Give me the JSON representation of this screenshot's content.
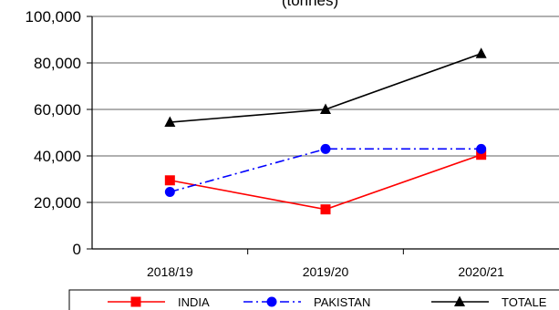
{
  "chart_data": {
    "type": "line",
    "title": "(tonnes)",
    "categories": [
      "2018/19",
      "2019/20",
      "2020/21"
    ],
    "ylim": [
      0,
      100000
    ],
    "yticks": [
      "0",
      "20,000",
      "40,000",
      "60,000",
      "80,000",
      "100,000"
    ],
    "grid": true,
    "legend_position": "bottom",
    "series": [
      {
        "name": "INDIA",
        "values": [
          29500,
          17000,
          40500
        ],
        "color": "#ff0000",
        "marker": "square",
        "dash": "solid"
      },
      {
        "name": "PAKISTAN",
        "values": [
          24500,
          43000,
          43000
        ],
        "color": "#0000ff",
        "marker": "circle",
        "dash": "dashdot"
      },
      {
        "name": "TOTALE",
        "values": [
          54500,
          60000,
          84000
        ],
        "color": "#000000",
        "marker": "triangle",
        "dash": "solid"
      }
    ]
  }
}
